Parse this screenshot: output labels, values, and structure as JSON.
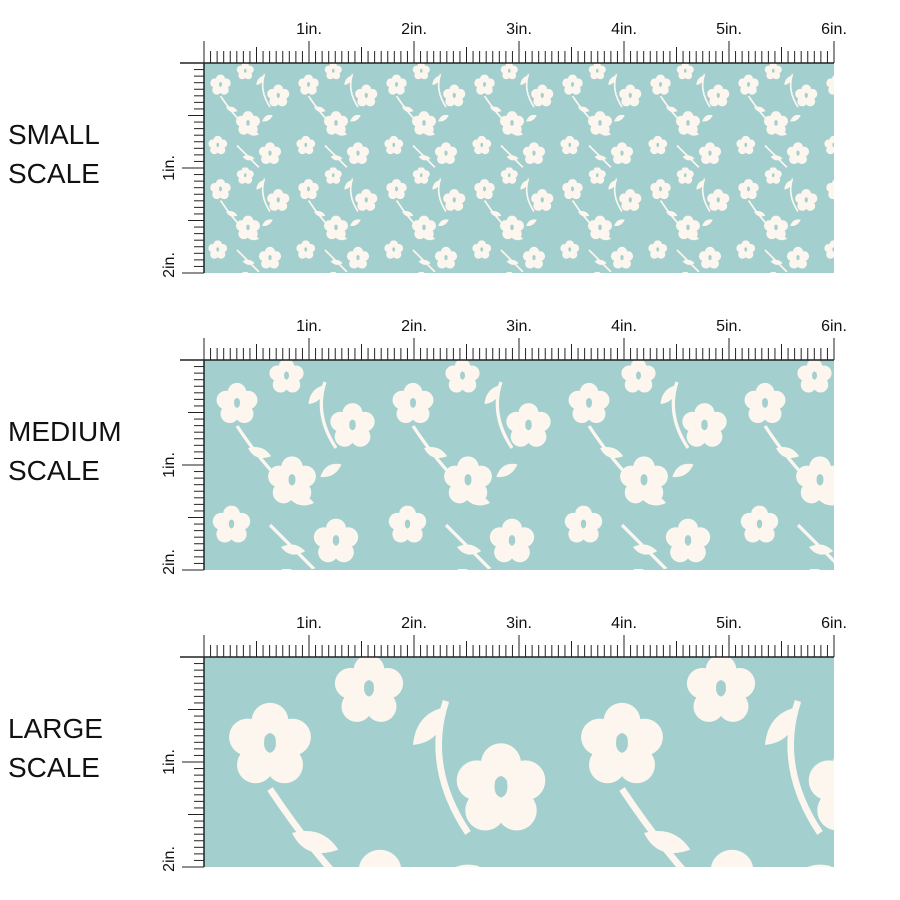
{
  "panels": [
    {
      "label": [
        "SMALL",
        "SCALE"
      ],
      "ruler_top": [
        "1in.",
        "2in.",
        "3in.",
        "4in.",
        "5in.",
        "6in."
      ],
      "ruler_side": [
        "1in.",
        "2in."
      ]
    },
    {
      "label": [
        "MEDIUM",
        "SCALE"
      ],
      "ruler_top": [
        "1in.",
        "2in.",
        "3in.",
        "4in.",
        "5in.",
        "6in."
      ],
      "ruler_side": [
        "1in.",
        "2in."
      ]
    },
    {
      "label": [
        "LARGE",
        "SCALE"
      ],
      "ruler_top": [
        "1in.",
        "2in.",
        "3in.",
        "4in.",
        "5in.",
        "6in."
      ],
      "ruler_side": [
        "1in.",
        "2in."
      ]
    }
  ]
}
